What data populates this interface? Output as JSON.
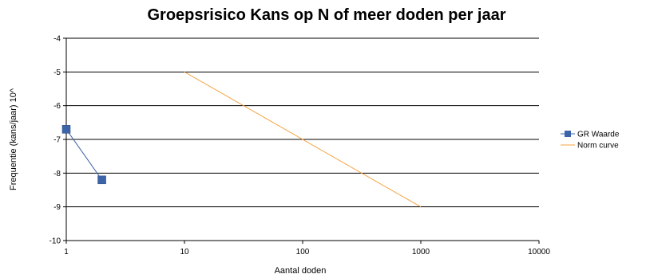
{
  "chart_data": {
    "type": "line",
    "title": "Groepsrisico Kans op N of meer doden per jaar",
    "xlabel": "Aantal doden",
    "ylabel": "Frequentie (kans/jaar) 10^",
    "x_scale": "log",
    "xlim": [
      1,
      10000
    ],
    "ylim": [
      -10,
      -4
    ],
    "x_ticks": [
      1,
      10,
      100,
      1000,
      10000
    ],
    "x_tick_labels": [
      "1",
      "10",
      "100",
      "1000",
      "10000"
    ],
    "y_ticks": [
      -4,
      -5,
      -6,
      -7,
      -8,
      -9,
      -10
    ],
    "y_tick_labels": [
      "-4",
      "-5",
      "-6",
      "-7",
      "-8",
      "-9",
      "-10"
    ],
    "grid": {
      "horizontal": true,
      "vertical": false
    },
    "legend_position": "right",
    "series": [
      {
        "name": "GR Waarde",
        "color": "#3c64a8",
        "marker": "square",
        "x": [
          1,
          2
        ],
        "y": [
          -6.7,
          -8.2
        ]
      },
      {
        "name": "Norm curve",
        "color": "#f5a343",
        "marker": "none",
        "x": [
          10,
          1000
        ],
        "y": [
          -5,
          -9
        ]
      }
    ]
  }
}
